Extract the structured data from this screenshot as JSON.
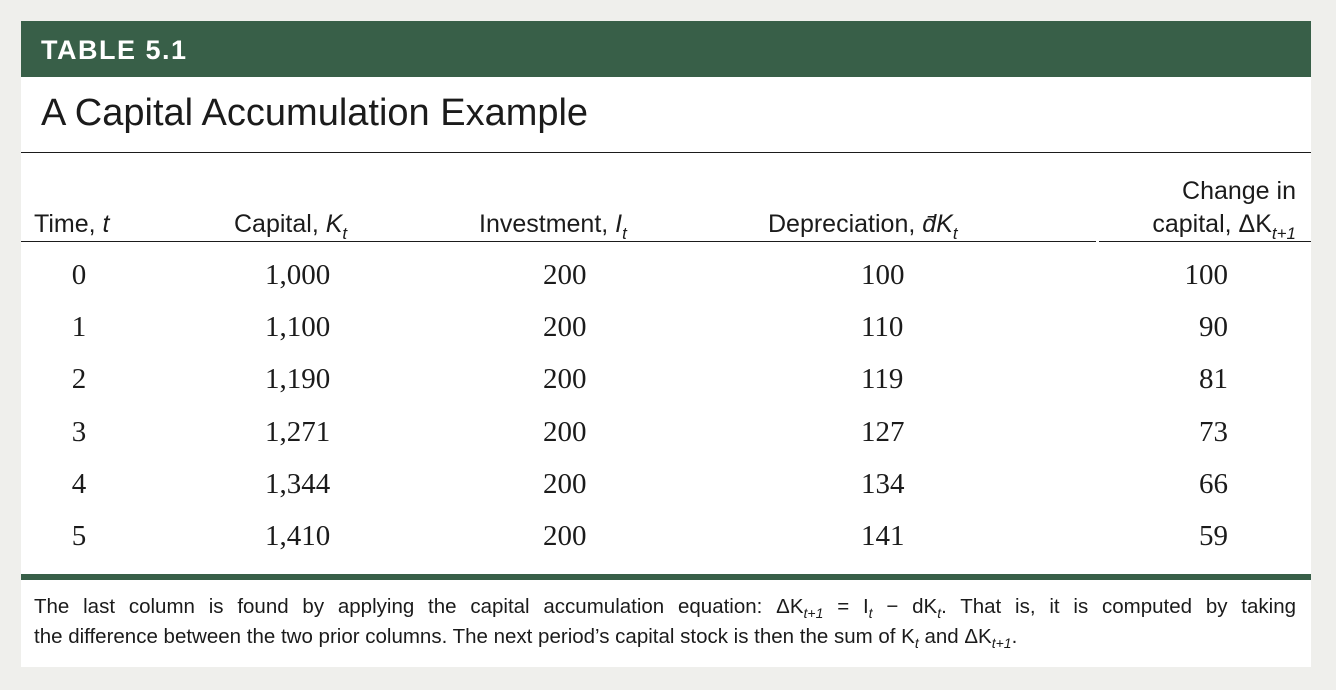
{
  "table_label": "TABLE 5.1",
  "title": "A Capital Accumulation Example",
  "columns": [
    {
      "line1": "",
      "text": "Time, ",
      "symbol": "t",
      "subscript": ""
    },
    {
      "line1": "",
      "text": "Capital, ",
      "symbol": "K",
      "subscript": "t"
    },
    {
      "line1": "",
      "text": "Investment, ",
      "symbol": "I",
      "subscript": "t"
    },
    {
      "line1": "",
      "text": "Depreciation, ",
      "symbol": "d̄K",
      "subscript": "t"
    },
    {
      "line1": "Change in",
      "text": "capital, ΔK",
      "symbol": "",
      "subscript": "t+1"
    }
  ],
  "rows": [
    [
      "0",
      "1,000",
      "200",
      "100",
      "100"
    ],
    [
      "1",
      "1,100",
      "200",
      "110",
      "90"
    ],
    [
      "2",
      "1,190",
      "200",
      "119",
      "81"
    ],
    [
      "3",
      "1,271",
      "200",
      "127",
      "73"
    ],
    [
      "4",
      "1,344",
      "200",
      "134",
      "66"
    ],
    [
      "5",
      "1,410",
      "200",
      "141",
      "59"
    ]
  ],
  "note": {
    "p1": "The last column is found by applying the capital accumulation equation: ΔK",
    "p1_sub": "t+1",
    "p2": " = I",
    "p2_sub": "t",
    "p3": " − dK",
    "p3_sub": "t",
    "p4": ". That is, it is computed by taking",
    "p5": "the difference between the two prior columns. The next period’s capital stock is then the sum of K",
    "p5_sub": "t",
    "p6": " and ΔK",
    "p6_sub": "t+1",
    "p7": "."
  }
}
